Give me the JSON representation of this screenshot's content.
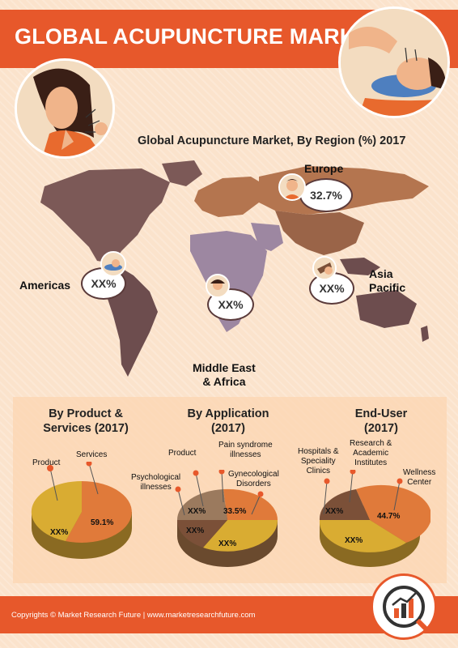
{
  "header": {
    "title": "GLOBAL ACUPUNCTURE MARKET"
  },
  "region_section": {
    "title": "Global Acupuncture Market, By Region (%) 2017",
    "regions": [
      {
        "name": "Europe",
        "value": "32.7%"
      },
      {
        "name": "Americas",
        "value": "XX%"
      },
      {
        "name": "Middle East & Africa",
        "line1": "Middle East",
        "line2": "& Africa",
        "value": "XX%"
      },
      {
        "name": "Asia Pacific",
        "line1": "Asia",
        "line2": "Pacific",
        "value": "XX%"
      }
    ]
  },
  "product_chart": {
    "title_line1": "By Product &",
    "title_line2": "Services (2017)",
    "segments": [
      {
        "label": "Product",
        "value": "XX%"
      },
      {
        "label": "Services",
        "value": "59.1%"
      }
    ]
  },
  "application_chart": {
    "title_line1": "By Application",
    "title_line2": "(2017)",
    "segments": [
      {
        "label": "Product",
        "value": "XX%"
      },
      {
        "label_line1": "Pain syndrome",
        "label_line2": "illnesses",
        "value": "33.5%"
      },
      {
        "label_line1": "Gynecological",
        "label_line2": "Disorders",
        "value": "XX%"
      },
      {
        "label_line1": "Psychological",
        "label_line2": "illnesses",
        "value": "XX%"
      }
    ]
  },
  "enduser_chart": {
    "title_line1": "End-User",
    "title_line2": "(2017)",
    "segments": [
      {
        "label_line1": "Hospitals &",
        "label_line2": "Speciality",
        "label_line3": "Clinics",
        "value": "XX%"
      },
      {
        "label_line1": "Research &",
        "label_line2": "Academic",
        "label_line3": "Institutes",
        "value": "XX%"
      },
      {
        "label_line1": "Wellness",
        "label_line2": "Center",
        "value": "44.7%"
      }
    ]
  },
  "footer": {
    "text": "Copyrights © Market Research Future | www.marketresearchfuture.com"
  },
  "colors": {
    "accent": "#e7582b",
    "background": "#fbe3cc",
    "pie_orange": "#e07a3a",
    "pie_yellow": "#d9ac32",
    "pie_brown": "#7b5038"
  }
}
